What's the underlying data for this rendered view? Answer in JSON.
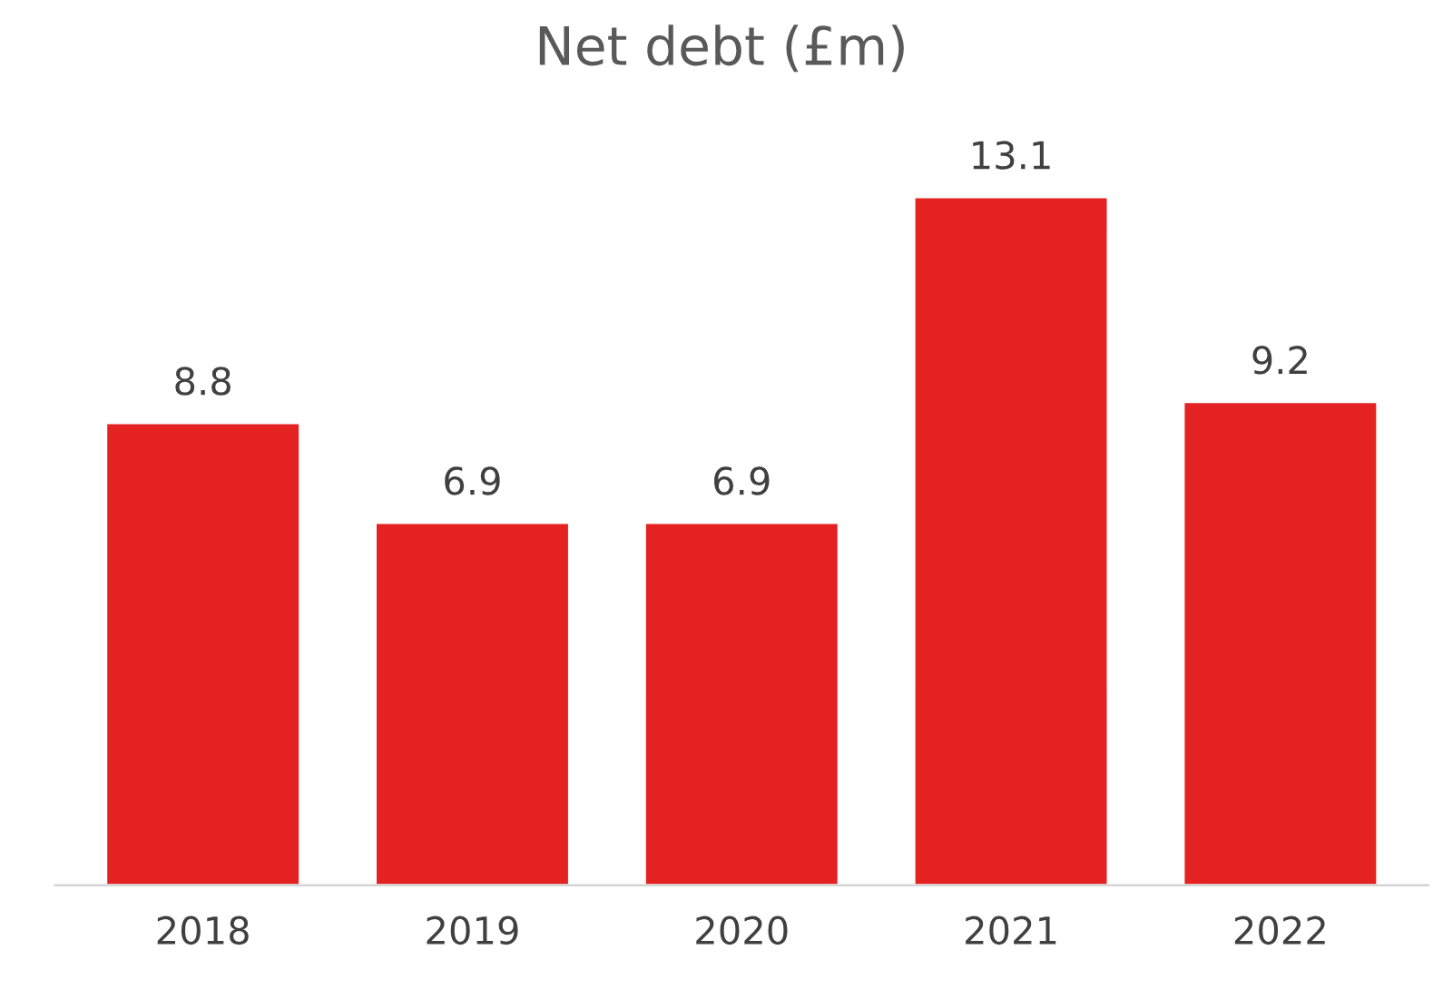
{
  "chart_data": {
    "type": "bar",
    "title": "Net debt (£m)",
    "categories": [
      "2018",
      "2019",
      "2020",
      "2021",
      "2022"
    ],
    "values": [
      8.8,
      6.9,
      6.9,
      13.1,
      9.2
    ],
    "color": "#e52222",
    "data_labels": true,
    "grid": false,
    "legend": false
  }
}
